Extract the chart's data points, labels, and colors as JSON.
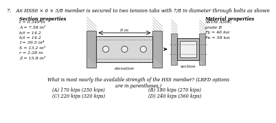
{
  "title": "7.   An HSS6 × 6 × 3/8 member is secured to two tension tabs with 7/8 in diameter through bolts as shown",
  "section_props_title": "Section properties",
  "section_props": [
    "t = 0.349 in",
    "A = 7.58 in²",
    "b/t = 14.2",
    "h/t = 14.2",
    "I = 39.5 in⁴",
    "S = 13.2 in³",
    "r = 2.28 in",
    "Z = 15.8 in³"
  ],
  "material_props_title": "Material properties",
  "material_props": [
    "ASTM A500,",
    "grade B",
    "Fy = 46 ksi",
    "Fu = 58 ksi"
  ],
  "dim_label": "9 in",
  "elevation_label": "elevation",
  "section_label": "section",
  "question": "What is most nearly the available strength of the HSS member? (LRFD options\nare in parentheses.)",
  "answers": [
    [
      "(A) 170 kips (250 kips)",
      "(B) 180 kips (270 kips)"
    ],
    [
      "(C) 220 kips (320 kips)",
      "(D) 240 kips (360 kips)"
    ]
  ]
}
